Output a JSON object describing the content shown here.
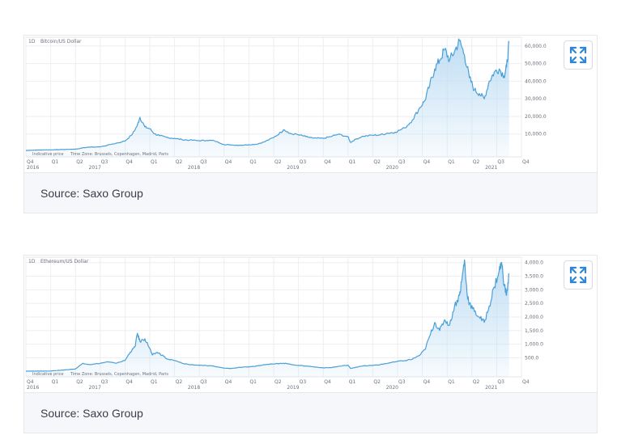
{
  "charts": [
    {
      "id": "btc",
      "interval": "1D",
      "title": "Bitcoin/US Dollar",
      "notes": [
        "Indicative price",
        "Time Zone: Brussels, Copenhagen, Madrid, Paris"
      ],
      "caption": "Source: Saxo Group"
    },
    {
      "id": "eth",
      "interval": "1D",
      "title": "Ethereum/US Dollar",
      "notes": [
        "Indicative price",
        "Time Zone: Brussels, Copenhagen, Madrid, Paris"
      ],
      "caption": "Source: Saxo Group"
    }
  ],
  "chart_data": [
    {
      "type": "area",
      "title": "Bitcoin/US Dollar",
      "line_color": "#4a9fd8",
      "fill_color": "#bcdcf3",
      "x_labels": [
        "Q4",
        "Q1",
        "Q2",
        "Q3",
        "Q4",
        "Q1",
        "Q2",
        "Q3",
        "Q4",
        "Q1",
        "Q2",
        "Q3",
        "Q4",
        "Q1",
        "Q2",
        "Q3",
        "Q4",
        "Q1",
        "Q2",
        "Q3",
        "Q4"
      ],
      "year_labels": [
        {
          "label": "2016",
          "q": 0
        },
        {
          "label": "2017",
          "q": 2.5
        },
        {
          "label": "2018",
          "q": 6.5
        },
        {
          "label": "2019",
          "q": 10.5
        },
        {
          "label": "2020",
          "q": 14.5
        },
        {
          "label": "2021",
          "q": 18.5
        }
      ],
      "ylim": [
        -3000,
        65000
      ],
      "y_ticks": [
        10000,
        20000,
        30000,
        40000,
        50000,
        60000
      ],
      "y_tick_labels": [
        "10,000.0",
        "20,000.0",
        "30,000.0",
        "40,000.0",
        "50,000.0",
        "60,000.0"
      ],
      "points": [
        [
          0,
          650
        ],
        [
          0.5,
          900
        ],
        [
          1,
          1000
        ],
        [
          1.5,
          1200
        ],
        [
          2,
          1400
        ],
        [
          2.5,
          2500
        ],
        [
          3,
          2700
        ],
        [
          3.5,
          4300
        ],
        [
          4,
          6000
        ],
        [
          4.3,
          10000
        ],
        [
          4.5,
          15000
        ],
        [
          4.6,
          19500
        ],
        [
          4.8,
          14000
        ],
        [
          5,
          13000
        ],
        [
          5.2,
          10000
        ],
        [
          5.4,
          9000
        ],
        [
          5.7,
          8000
        ],
        [
          6,
          7500
        ],
        [
          6.3,
          6800
        ],
        [
          6.6,
          6500
        ],
        [
          7,
          6200
        ],
        [
          7.3,
          6400
        ],
        [
          7.6,
          6200
        ],
        [
          8,
          4000
        ],
        [
          8.3,
          3800
        ],
        [
          8.6,
          3600
        ],
        [
          9,
          3900
        ],
        [
          9.3,
          4200
        ],
        [
          9.6,
          5400
        ],
        [
          10,
          8000
        ],
        [
          10.3,
          11000
        ],
        [
          10.4,
          12500
        ],
        [
          10.6,
          10500
        ],
        [
          11,
          9500
        ],
        [
          11.3,
          8500
        ],
        [
          11.6,
          7600
        ],
        [
          12,
          7500
        ],
        [
          12.3,
          8500
        ],
        [
          12.6,
          9800
        ],
        [
          13,
          8500
        ],
        [
          13.1,
          5200
        ],
        [
          13.3,
          7000
        ],
        [
          13.6,
          8700
        ],
        [
          14,
          9300
        ],
        [
          14.3,
          9500
        ],
        [
          14.6,
          10500
        ],
        [
          14.9,
          11000
        ],
        [
          15.3,
          13500
        ],
        [
          15.6,
          18000
        ],
        [
          15.9,
          25000
        ],
        [
          16.1,
          29000
        ],
        [
          16.3,
          38000
        ],
        [
          16.5,
          47000
        ],
        [
          16.7,
          52000
        ],
        [
          16.9,
          58000
        ],
        [
          17.1,
          52000
        ],
        [
          17.3,
          57000
        ],
        [
          17.5,
          63000
        ],
        [
          17.7,
          55000
        ],
        [
          17.9,
          42000
        ],
        [
          18.1,
          35000
        ],
        [
          18.3,
          33000
        ],
        [
          18.5,
          30000
        ],
        [
          18.7,
          40000
        ],
        [
          18.9,
          45000
        ],
        [
          19.1,
          47000
        ],
        [
          19.3,
          43000
        ],
        [
          19.4,
          48000
        ],
        [
          19.5,
          62000
        ]
      ]
    },
    {
      "type": "area",
      "title": "Ethereum/US Dollar",
      "line_color": "#4a9fd8",
      "fill_color": "#bcdcf3",
      "x_labels": [
        "Q4",
        "Q1",
        "Q2",
        "Q3",
        "Q4",
        "Q1",
        "Q2",
        "Q3",
        "Q4",
        "Q1",
        "Q2",
        "Q3",
        "Q4",
        "Q1",
        "Q2",
        "Q3",
        "Q4",
        "Q1",
        "Q2",
        "Q3",
        "Q4"
      ],
      "year_labels": [
        {
          "label": "2016",
          "q": 0
        },
        {
          "label": "2017",
          "q": 2.5
        },
        {
          "label": "2018",
          "q": 6.5
        },
        {
          "label": "2019",
          "q": 10.5
        },
        {
          "label": "2020",
          "q": 14.5
        },
        {
          "label": "2021",
          "q": 18.5
        }
      ],
      "ylim": [
        -200,
        4200
      ],
      "y_ticks": [
        500,
        1000,
        1500,
        2000,
        2500,
        3000,
        3500,
        4000
      ],
      "y_tick_labels": [
        "500.0",
        "1,000.0",
        "1,500.0",
        "2,000.0",
        "2,500.0",
        "3,000.0",
        "3,500.0",
        "4,000.0"
      ],
      "points": [
        [
          0,
          10
        ],
        [
          0.5,
          10
        ],
        [
          1,
          15
        ],
        [
          1.5,
          50
        ],
        [
          2,
          90
        ],
        [
          2.3,
          300
        ],
        [
          2.6,
          250
        ],
        [
          3,
          300
        ],
        [
          3.3,
          350
        ],
        [
          3.6,
          300
        ],
        [
          4,
          400
        ],
        [
          4.2,
          700
        ],
        [
          4.4,
          900
        ],
        [
          4.5,
          1400
        ],
        [
          4.6,
          1100
        ],
        [
          4.8,
          1200
        ],
        [
          5,
          850
        ],
        [
          5.1,
          600
        ],
        [
          5.3,
          700
        ],
        [
          5.5,
          600
        ],
        [
          5.7,
          450
        ],
        [
          6,
          400
        ],
        [
          6.3,
          300
        ],
        [
          6.6,
          250
        ],
        [
          7,
          230
        ],
        [
          7.3,
          210
        ],
        [
          7.6,
          190
        ],
        [
          8,
          120
        ],
        [
          8.3,
          110
        ],
        [
          8.6,
          150
        ],
        [
          9,
          170
        ],
        [
          9.3,
          200
        ],
        [
          9.6,
          250
        ],
        [
          10,
          270
        ],
        [
          10.3,
          300
        ],
        [
          10.5,
          290
        ],
        [
          11,
          220
        ],
        [
          11.3,
          200
        ],
        [
          11.6,
          170
        ],
        [
          12,
          130
        ],
        [
          12.3,
          140
        ],
        [
          12.6,
          180
        ],
        [
          13,
          230
        ],
        [
          13.1,
          110
        ],
        [
          13.3,
          150
        ],
        [
          13.6,
          200
        ],
        [
          14,
          220
        ],
        [
          14.3,
          250
        ],
        [
          14.6,
          300
        ],
        [
          14.9,
          350
        ],
        [
          15.3,
          400
        ],
        [
          15.6,
          450
        ],
        [
          15.9,
          600
        ],
        [
          16.1,
          800
        ],
        [
          16.3,
          1300
        ],
        [
          16.5,
          1800
        ],
        [
          16.7,
          1500
        ],
        [
          16.9,
          1900
        ],
        [
          17.1,
          1700
        ],
        [
          17.3,
          2400
        ],
        [
          17.5,
          2800
        ],
        [
          17.6,
          3400
        ],
        [
          17.7,
          4100
        ],
        [
          17.8,
          2900
        ],
        [
          17.9,
          2500
        ],
        [
          18.1,
          2200
        ],
        [
          18.3,
          2000
        ],
        [
          18.5,
          1800
        ],
        [
          18.7,
          2400
        ],
        [
          18.9,
          3100
        ],
        [
          19.1,
          3700
        ],
        [
          19.2,
          4000
        ],
        [
          19.3,
          3200
        ],
        [
          19.4,
          2800
        ],
        [
          19.5,
          3600
        ]
      ]
    }
  ]
}
